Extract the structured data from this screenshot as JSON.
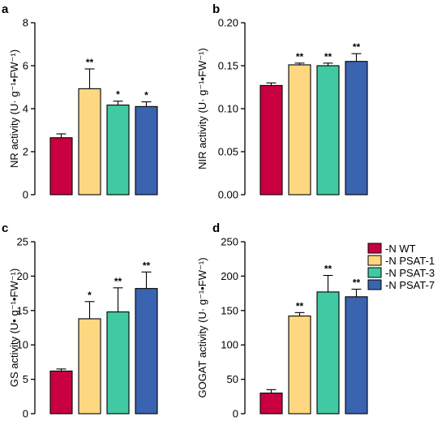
{
  "colors": {
    "wt": "#C8003F",
    "psat1": "#FFD780",
    "psat3": "#40C9A2",
    "psat7": "#3A63B0"
  },
  "legend": [
    {
      "label": "-N WT",
      "color_key": "wt"
    },
    {
      "label": "-N PSAT-1",
      "color_key": "psat1"
    },
    {
      "label": "-N PSAT-3",
      "color_key": "psat3"
    },
    {
      "label": "-N PSAT-7",
      "color_key": "psat7"
    }
  ],
  "chart_data": [
    {
      "type": "bar",
      "panel": "a",
      "ylabel": "NR activity  (U· g⁻¹•FW⁻¹)",
      "categories": [
        "-N WT",
        "-N PSAT-1",
        "-N PSAT-3",
        "-N PSAT-7"
      ],
      "values": [
        2.65,
        4.93,
        4.17,
        4.1
      ],
      "errors": [
        0.18,
        0.92,
        0.18,
        0.22
      ],
      "significance": [
        "",
        "**",
        "*",
        "*"
      ],
      "ylim": [
        0,
        8
      ],
      "yticks": [
        "0",
        "2",
        "4",
        "6",
        "8"
      ],
      "grid": false
    },
    {
      "type": "bar",
      "panel": "b",
      "ylabel": "NIR activity  (U· g⁻¹•FW⁻¹)",
      "categories": [
        "-N WT",
        "-N PSAT-1",
        "-N PSAT-3",
        "-N PSAT-7"
      ],
      "values": [
        0.127,
        0.151,
        0.15,
        0.155
      ],
      "errors": [
        0.003,
        0.002,
        0.003,
        0.009
      ],
      "significance": [
        "",
        "**",
        "**",
        "**"
      ],
      "ylim": [
        0,
        0.2
      ],
      "yticks": [
        "0.00",
        "0.05",
        "0.10",
        "0.15",
        "0.20"
      ],
      "grid": false
    },
    {
      "type": "bar",
      "panel": "c",
      "ylabel": "GS activity  (U• g⁻¹•FW⁻¹)",
      "categories": [
        "-N WT",
        "-N PSAT-1",
        "-N PSAT-3",
        "-N PSAT-7"
      ],
      "values": [
        6.2,
        13.8,
        14.8,
        18.2
      ],
      "errors": [
        0.3,
        2.5,
        3.5,
        2.4
      ],
      "significance": [
        "",
        "*",
        "**",
        "**"
      ],
      "ylim": [
        0,
        25
      ],
      "yticks": [
        "0",
        "5",
        "10",
        "15",
        "20",
        "25"
      ],
      "grid": false
    },
    {
      "type": "bar",
      "panel": "d",
      "ylabel": "GOGAT activity  (U· g⁻¹•FW⁻¹)",
      "categories": [
        "-N WT",
        "-N PSAT-1",
        "-N PSAT-3",
        "-N PSAT-7"
      ],
      "values": [
        30,
        142,
        177,
        170
      ],
      "errors": [
        5,
        5,
        24,
        11
      ],
      "significance": [
        "",
        "**",
        "**",
        "**"
      ],
      "ylim": [
        0,
        250
      ],
      "yticks": [
        "0",
        "50",
        "100",
        "150",
        "200",
        "250"
      ],
      "grid": false
    }
  ]
}
